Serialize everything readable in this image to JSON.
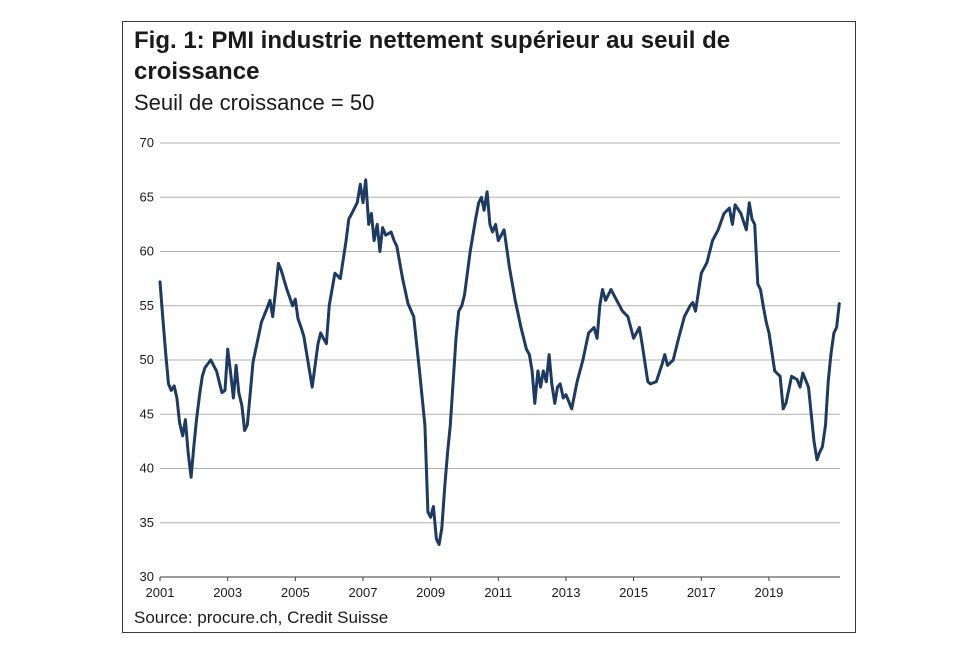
{
  "title": "Fig. 1: PMI industrie nettement supérieur au seuil de croissance",
  "subtitle": "Seuil de croissance = 50",
  "source": "Source: procure.ch, Credit Suisse",
  "colors": {
    "line": "#1d3a63",
    "grid": "#b0b0b0"
  },
  "chart_data": {
    "type": "line",
    "title": "Fig. 1: PMI industrie nettement supérieur au seuil de croissance",
    "subtitle": "Seuil de croissance = 50",
    "xlabel": "",
    "ylabel": "",
    "ylim": [
      30,
      70
    ],
    "xlim": [
      2001,
      2021.1
    ],
    "grid": true,
    "y_ticks": [
      30,
      35,
      40,
      45,
      50,
      55,
      60,
      65,
      70
    ],
    "x_ticks": [
      "2001",
      "2003",
      "2005",
      "2007",
      "2009",
      "2011",
      "2013",
      "2015",
      "2017",
      "2019"
    ],
    "series": [
      {
        "name": "",
        "x": [
          2001.0,
          2001.08,
          2001.17,
          2001.25,
          2001.33,
          2001.42,
          2001.5,
          2001.58,
          2001.67,
          2001.75,
          2001.83,
          2001.92,
          2002.0,
          2002.08,
          2002.17,
          2002.25,
          2002.33,
          2002.5,
          2002.67,
          2002.83,
          2002.92,
          2003.0,
          2003.08,
          2003.17,
          2003.25,
          2003.33,
          2003.42,
          2003.5,
          2003.58,
          2003.67,
          2003.75,
          2004.0,
          2004.17,
          2004.25,
          2004.33,
          2004.42,
          2004.5,
          2004.58,
          2004.75,
          2004.92,
          2005.0,
          2005.08,
          2005.17,
          2005.25,
          2005.5,
          2005.67,
          2005.75,
          2005.83,
          2005.92,
          2006.0,
          2006.17,
          2006.33,
          2006.5,
          2006.58,
          2006.67,
          2006.75,
          2006.83,
          2006.92,
          2007.0,
          2007.08,
          2007.17,
          2007.25,
          2007.33,
          2007.42,
          2007.5,
          2007.58,
          2007.67,
          2007.83,
          2007.92,
          2008.0,
          2008.17,
          2008.33,
          2008.5,
          2008.67,
          2008.83,
          2008.92,
          2009.0,
          2009.08,
          2009.17,
          2009.25,
          2009.33,
          2009.42,
          2009.5,
          2009.58,
          2009.75,
          2009.83,
          2009.92,
          2010.0,
          2010.17,
          2010.33,
          2010.42,
          2010.5,
          2010.58,
          2010.67,
          2010.75,
          2010.83,
          2010.92,
          2011.0,
          2011.17,
          2011.33,
          2011.5,
          2011.67,
          2011.83,
          2011.92,
          2012.0,
          2012.08,
          2012.17,
          2012.25,
          2012.33,
          2012.42,
          2012.5,
          2012.58,
          2012.67,
          2012.75,
          2012.83,
          2012.92,
          2013.0,
          2013.17,
          2013.33,
          2013.5,
          2013.67,
          2013.83,
          2013.92,
          2014.0,
          2014.08,
          2014.17,
          2014.33,
          2014.5,
          2014.67,
          2014.83,
          2015.0,
          2015.17,
          2015.25,
          2015.42,
          2015.5,
          2015.67,
          2015.83,
          2015.92,
          2016.0,
          2016.17,
          2016.33,
          2016.5,
          2016.67,
          2016.75,
          2016.83,
          2017.0,
          2017.17,
          2017.33,
          2017.5,
          2017.67,
          2017.83,
          2017.92,
          2018.0,
          2018.17,
          2018.33,
          2018.42,
          2018.5,
          2018.58,
          2018.67,
          2018.75,
          2018.83,
          2018.92,
          2019.0,
          2019.17,
          2019.33,
          2019.42,
          2019.5,
          2019.67,
          2019.83,
          2019.92,
          2020.0,
          2020.17,
          2020.33,
          2020.42,
          2020.5,
          2020.58,
          2020.67,
          2020.75,
          2020.83,
          2020.92,
          2021.0,
          2021.08
        ],
        "values": [
          57.2,
          54.0,
          50.5,
          47.8,
          47.2,
          47.6,
          46.5,
          44.2,
          43.0,
          44.5,
          41.5,
          39.2,
          42.0,
          44.5,
          46.8,
          48.5,
          49.3,
          50.0,
          49.0,
          47.0,
          47.2,
          51.0,
          49.0,
          46.5,
          49.5,
          47.0,
          45.8,
          43.5,
          44.0,
          47.0,
          49.8,
          53.5,
          54.8,
          55.5,
          54.0,
          56.5,
          58.9,
          58.3,
          56.5,
          55.0,
          55.6,
          53.8,
          53.0,
          52.2,
          47.5,
          51.5,
          52.5,
          52.0,
          51.5,
          55.0,
          58.0,
          57.5,
          61.0,
          63.0,
          63.5,
          64.0,
          64.5,
          66.2,
          64.5,
          66.6,
          62.5,
          63.5,
          61.0,
          62.5,
          60.0,
          62.2,
          61.5,
          61.8,
          61.0,
          60.5,
          57.5,
          55.2,
          54.0,
          49.0,
          44.0,
          36.0,
          35.5,
          36.5,
          33.5,
          33.0,
          34.5,
          38.5,
          41.5,
          44.0,
          52.0,
          54.5,
          55.0,
          56.0,
          60.0,
          63.0,
          64.5,
          65.0,
          63.8,
          65.5,
          62.5,
          61.8,
          62.5,
          61.0,
          62.0,
          58.5,
          55.5,
          53.0,
          51.0,
          50.5,
          49.0,
          46.0,
          49.0,
          47.5,
          49.0,
          48.0,
          50.5,
          47.8,
          46.0,
          47.5,
          47.8,
          46.5,
          46.8,
          45.5,
          48.0,
          50.0,
          52.5,
          53.0,
          52.0,
          55.0,
          56.5,
          55.5,
          56.5,
          55.5,
          54.5,
          54.0,
          52.0,
          53.0,
          51.5,
          48.0,
          47.8,
          48.0,
          49.5,
          50.5,
          49.5,
          50.0,
          52.0,
          54.0,
          55.0,
          55.3,
          54.5,
          58.0,
          59.0,
          61.0,
          62.0,
          63.5,
          64.0,
          62.5,
          64.3,
          63.5,
          62.0,
          64.5,
          63.0,
          62.5,
          57.0,
          56.5,
          55.0,
          53.5,
          52.5,
          49.0,
          48.5,
          45.5,
          46.0,
          48.5,
          48.2,
          47.5,
          48.8,
          47.5,
          42.5,
          40.8,
          41.5,
          42.0,
          44.0,
          48.0,
          50.5,
          52.5,
          53.0,
          55.2
        ]
      }
    ]
  }
}
